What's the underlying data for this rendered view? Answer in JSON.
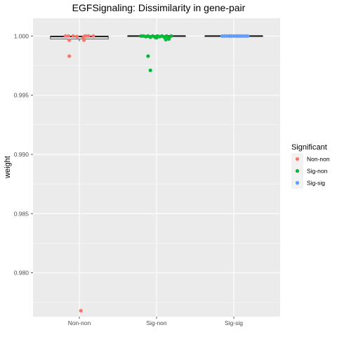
{
  "chart_data": {
    "type": "boxplot-jitter",
    "title": "EGFSignaling: Dissimilarity in gene-pair",
    "xlabel": "",
    "ylabel": "weight",
    "ylim": [
      0.9763,
      1.0015
    ],
    "yticks": [
      0.98,
      0.985,
      0.99,
      0.995,
      1.0
    ],
    "ytick_labels": [
      "0.980",
      "0.985",
      "0.990",
      "0.995",
      "1.000"
    ],
    "categories": [
      "Non-non",
      "Sig-non",
      "Sig-sig"
    ],
    "grid": true,
    "legend_position": "right",
    "legend": {
      "title": "Significant",
      "entries": [
        "Non-non",
        "Sig-non",
        "Sig-sig"
      ]
    },
    "colors": {
      "Non-non": "#F8766D",
      "Sig-non": "#00BA38",
      "Sig-sig": "#619CFF",
      "panel": "#EBEBEB",
      "grid": "#FFFFFF"
    },
    "boxes": [
      {
        "category": "Non-non",
        "q1": 0.99975,
        "median": 0.99995,
        "q3": 1.0,
        "whisker_low": 0.99955,
        "whisker_high": 1.0
      },
      {
        "category": "Sig-non",
        "q1": 1.0,
        "median": 1.0,
        "q3": 1.0,
        "whisker_low": 1.0,
        "whisker_high": 1.0
      },
      {
        "category": "Sig-sig",
        "q1": 1.0,
        "median": 1.0,
        "q3": 1.0,
        "whisker_low": 1.0,
        "whisker_high": 1.0
      }
    ],
    "series": [
      {
        "name": "Non-non",
        "points": [
          {
            "x": 0.82,
            "y": 1.0
          },
          {
            "x": 0.86,
            "y": 1.0
          },
          {
            "x": 0.92,
            "y": 1.0
          },
          {
            "x": 0.97,
            "y": 0.99995
          },
          {
            "x": 1.05,
            "y": 0.99985
          },
          {
            "x": 1.07,
            "y": 1.0
          },
          {
            "x": 1.09,
            "y": 1.0
          },
          {
            "x": 1.12,
            "y": 1.0
          },
          {
            "x": 1.18,
            "y": 1.0
          },
          {
            "x": 0.87,
            "y": 0.99965
          },
          {
            "x": 1.06,
            "y": 0.99965
          },
          {
            "x": 0.87,
            "y": 0.9983
          },
          {
            "x": 1.02,
            "y": 0.9768
          }
        ]
      },
      {
        "name": "Sig-non",
        "points": [
          {
            "x": 1.8,
            "y": 1.0
          },
          {
            "x": 1.83,
            "y": 1.0
          },
          {
            "x": 1.86,
            "y": 0.99995
          },
          {
            "x": 1.89,
            "y": 1.0
          },
          {
            "x": 1.92,
            "y": 0.9999
          },
          {
            "x": 1.95,
            "y": 1.0
          },
          {
            "x": 1.98,
            "y": 0.9999
          },
          {
            "x": 2.01,
            "y": 1.0
          },
          {
            "x": 2.04,
            "y": 0.99995
          },
          {
            "x": 2.07,
            "y": 1.0
          },
          {
            "x": 2.1,
            "y": 0.9999
          },
          {
            "x": 2.13,
            "y": 1.0
          },
          {
            "x": 2.16,
            "y": 0.99985
          },
          {
            "x": 2.19,
            "y": 1.0
          },
          {
            "x": 2.12,
            "y": 0.9997
          },
          {
            "x": 2.16,
            "y": 0.99975
          },
          {
            "x": 2.0,
            "y": 0.99985
          },
          {
            "x": 1.89,
            "y": 0.9983
          },
          {
            "x": 1.92,
            "y": 0.9971
          }
        ]
      },
      {
        "name": "Sig-sig",
        "points": [
          {
            "x": 2.85,
            "y": 1.0
          },
          {
            "x": 2.88,
            "y": 1.0
          },
          {
            "x": 2.91,
            "y": 1.0
          },
          {
            "x": 2.94,
            "y": 1.0
          },
          {
            "x": 2.97,
            "y": 1.0
          },
          {
            "x": 3.0,
            "y": 1.0
          },
          {
            "x": 3.03,
            "y": 1.0
          },
          {
            "x": 3.06,
            "y": 1.0
          },
          {
            "x": 3.09,
            "y": 1.0
          },
          {
            "x": 3.12,
            "y": 1.0
          },
          {
            "x": 3.15,
            "y": 1.0
          },
          {
            "x": 3.18,
            "y": 1.0
          },
          {
            "x": 2.95,
            "y": 1.0
          },
          {
            "x": 3.05,
            "y": 1.0
          }
        ]
      }
    ]
  }
}
